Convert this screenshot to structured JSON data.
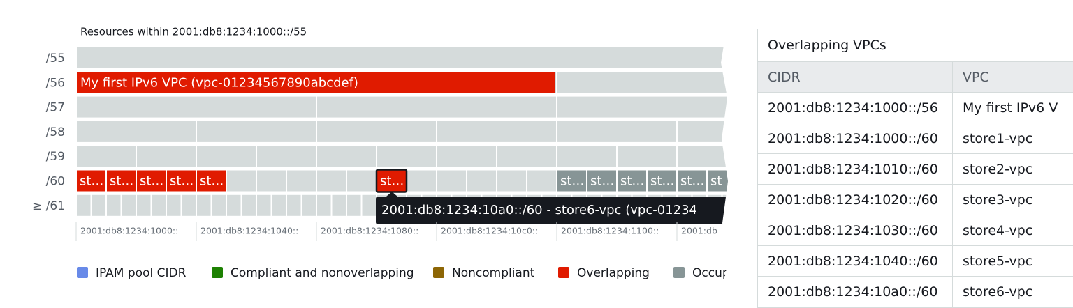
{
  "chart_panel": {
    "title": "Resources within 2001:db8:1234:1000::/55",
    "row_labels": [
      "/55",
      "/56",
      "/57",
      "/58",
      "/59",
      "/60",
      "≥ /61"
    ],
    "vpc_bar": "My first IPv6 VPC (vpc-01234567890abcdef)",
    "overlapping_cells": [
      "st…",
      "st…",
      "st…",
      "st…",
      "st…"
    ],
    "selected_cell": "st…",
    "occupied_cells": [
      "st…",
      "st…",
      "st…",
      "st…",
      "st…",
      "st"
    ],
    "tooltip": "2001:db8:1234:10a0::/60 - store6-vpc (vpc-01234",
    "axis_labels": [
      "2001:db8:1234:1000::",
      "2001:db8:1234:1040::",
      "2001:db8:1234:1080::",
      "2001:db8:1234:10c0::",
      "2001:db8:1234:1100::",
      "2001:db"
    ]
  },
  "legend": [
    "IPAM pool CIDR",
    "Compliant and nonoverlapping",
    "Noncompliant",
    "Overlapping",
    "Occup"
  ],
  "table": {
    "title": "Overlapping VPCs",
    "headers": [
      "CIDR",
      "VPC"
    ],
    "rows": [
      [
        "2001:db8:1234:1000::/56",
        "My first IPv6 V"
      ],
      [
        "2001:db8:1234:1000::/60",
        "store1-vpc"
      ],
      [
        "2001:db8:1234:1010::/60",
        "store2-vpc"
      ],
      [
        "2001:db8:1234:1020::/60",
        "store3-vpc"
      ],
      [
        "2001:db8:1234:1030::/60",
        "store4-vpc"
      ],
      [
        "2001:db8:1234:1040::/60",
        "store5-vpc"
      ],
      [
        "2001:db8:1234:10a0::/60",
        "store6-vpc"
      ]
    ]
  }
}
